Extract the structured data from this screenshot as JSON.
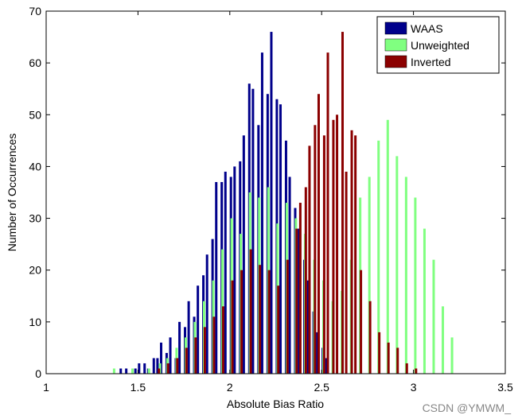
{
  "chart_data": {
    "type": "bar",
    "title": "",
    "xlabel": "Absolute Bias Ratio",
    "ylabel": "Number of Occurrences",
    "xlim": [
      1,
      3.5
    ],
    "ylim": [
      0,
      70
    ],
    "xticks": [
      1,
      1.5,
      2,
      2.5,
      3,
      3.5
    ],
    "yticks": [
      0,
      10,
      20,
      30,
      40,
      50,
      60,
      70
    ],
    "xtick_labels": [
      "1",
      "1.5",
      "2",
      "2.5",
      "3",
      "3.5"
    ],
    "ytick_labels": [
      "0",
      "10",
      "20",
      "30",
      "40",
      "50",
      "60",
      "70"
    ],
    "grid": false,
    "legend_position": "top-right",
    "series": [
      {
        "name": "WAAS",
        "color": "#00008b",
        "x": [
          1.41,
          1.44,
          1.49,
          1.51,
          1.54,
          1.56,
          1.59,
          1.61,
          1.63,
          1.66,
          1.68,
          1.71,
          1.73,
          1.76,
          1.78,
          1.81,
          1.83,
          1.86,
          1.88,
          1.91,
          1.93,
          1.96,
          1.98,
          2.01,
          2.03,
          2.06,
          2.08,
          2.11,
          2.13,
          2.16,
          2.18,
          2.21,
          2.23,
          2.26,
          2.28,
          2.31,
          2.33,
          2.36,
          2.38,
          2.41,
          2.43,
          2.46,
          2.48,
          2.51,
          2.53
        ],
        "values": [
          1,
          1,
          1,
          2,
          2,
          1,
          3,
          3,
          6,
          4,
          7,
          3,
          10,
          9,
          14,
          11,
          17,
          19,
          23,
          26,
          37,
          37,
          39,
          38,
          40,
          41,
          46,
          56,
          55,
          48,
          62,
          54,
          66,
          53,
          52,
          45,
          38,
          32,
          28,
          22,
          18,
          12,
          8,
          5,
          3
        ]
      },
      {
        "name": "Unweighted",
        "color": "#80ff80",
        "x": [
          1.37,
          1.47,
          1.56,
          1.62,
          1.66,
          1.71,
          1.76,
          1.81,
          1.86,
          1.91,
          1.96,
          2.01,
          2.06,
          2.11,
          2.16,
          2.21,
          2.26,
          2.31,
          2.36,
          2.41,
          2.46,
          2.51,
          2.56,
          2.61,
          2.66,
          2.71,
          2.76,
          2.81,
          2.86,
          2.91,
          2.96,
          3.01,
          3.06,
          3.11,
          3.16,
          3.21
        ],
        "values": [
          1,
          1,
          1,
          2,
          3,
          5,
          7,
          10,
          14,
          18,
          24,
          30,
          27,
          35,
          34,
          36,
          29,
          33,
          30,
          27,
          22,
          18,
          14,
          16,
          22,
          34,
          38,
          45,
          49,
          42,
          38,
          34,
          28,
          22,
          13,
          7
        ]
      },
      {
        "name": "Inverted",
        "color": "#8b0000",
        "x": [
          1.61,
          1.66,
          1.71,
          1.76,
          1.81,
          1.86,
          1.91,
          1.96,
          2.01,
          2.06,
          2.11,
          2.16,
          2.21,
          2.26,
          2.31,
          2.36,
          2.38,
          2.41,
          2.43,
          2.46,
          2.48,
          2.51,
          2.53,
          2.56,
          2.58,
          2.61,
          2.63,
          2.66,
          2.68,
          2.71,
          2.76,
          2.81,
          2.86,
          2.91,
          2.96,
          3.01
        ],
        "values": [
          1,
          2,
          3,
          5,
          7,
          9,
          11,
          13,
          18,
          20,
          24,
          21,
          20,
          17,
          22,
          28,
          33,
          36,
          44,
          48,
          54,
          46,
          62,
          49,
          50,
          66,
          39,
          47,
          46,
          20,
          14,
          8,
          6,
          5,
          2,
          1
        ]
      }
    ]
  },
  "watermark": "CSDN @YMWM_"
}
